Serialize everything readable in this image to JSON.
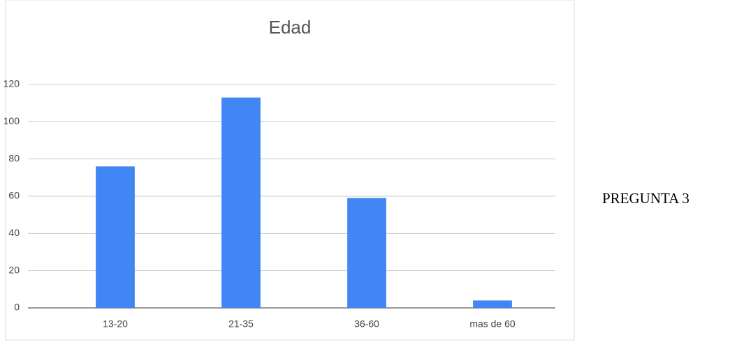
{
  "chart_data": {
    "type": "bar",
    "title": "Edad",
    "categories": [
      "13-20",
      "21-35",
      "36-60",
      "mas de 60"
    ],
    "values": [
      76,
      113,
      59,
      4
    ],
    "color": "#4285f4",
    "ylim": [
      0,
      120
    ],
    "yticks": [
      0,
      20,
      40,
      60,
      80,
      100,
      120
    ],
    "grid": true
  },
  "caption": "PREGUNTA 3"
}
